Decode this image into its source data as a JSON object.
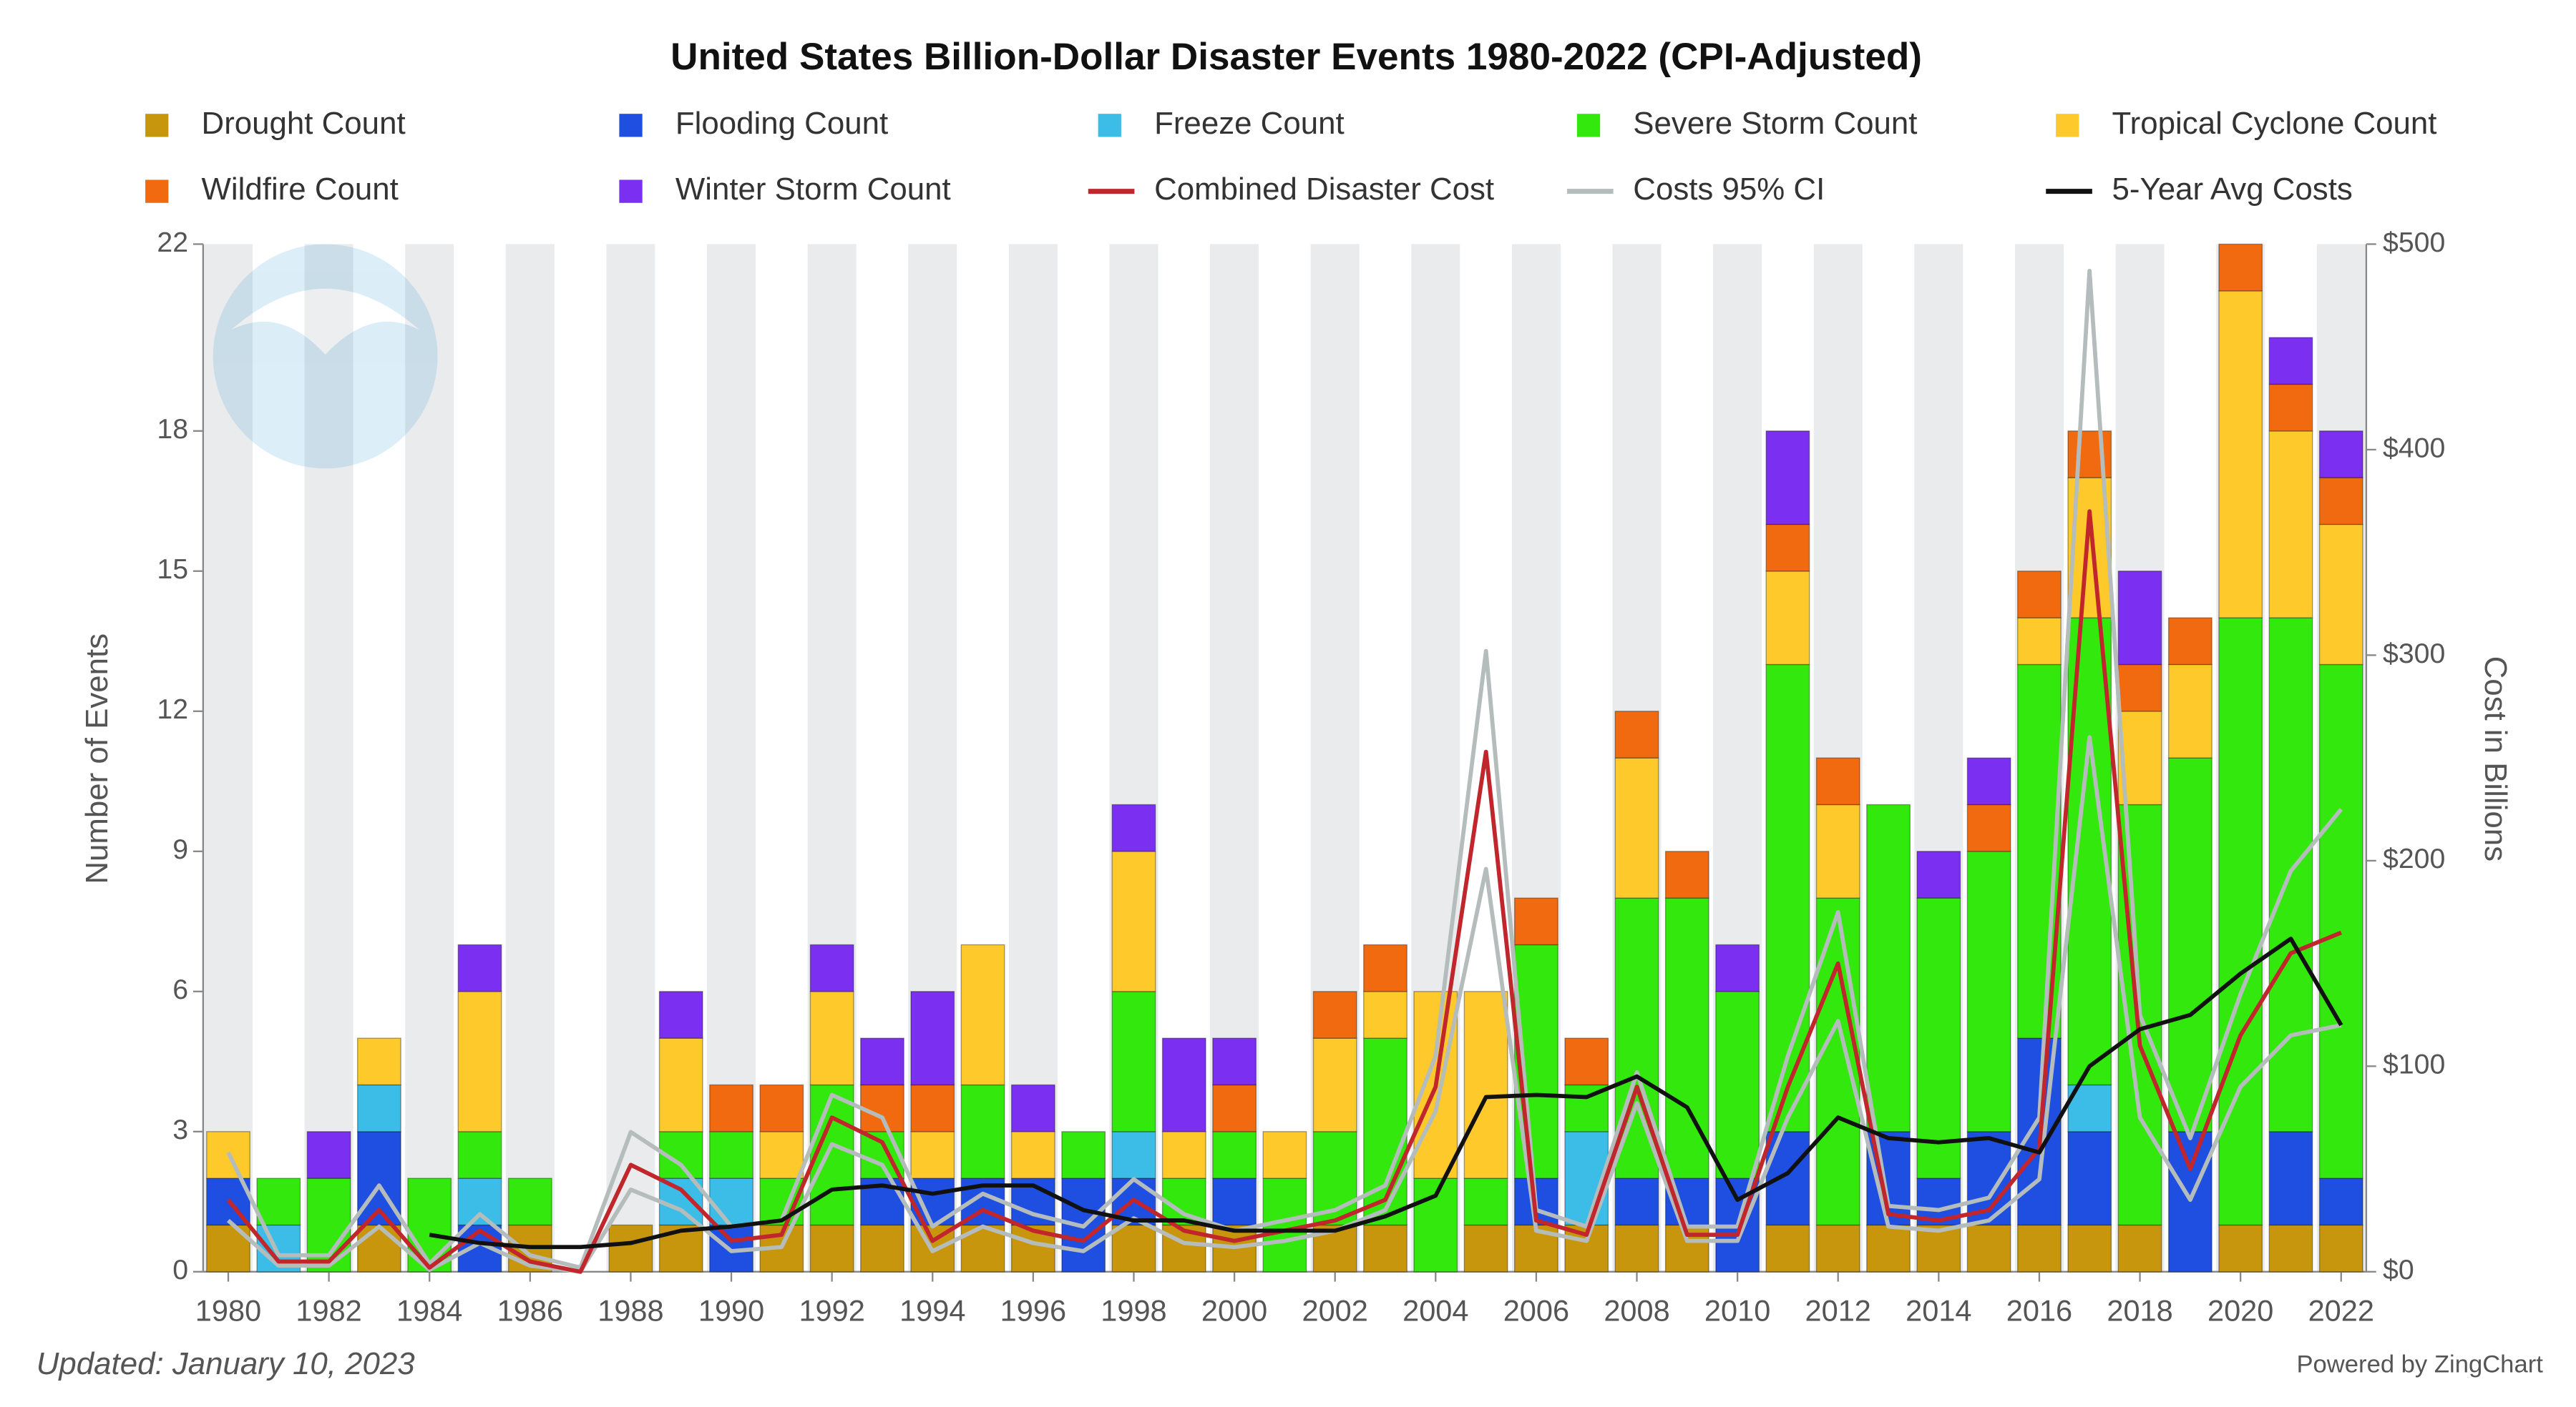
{
  "chart_data": {
    "type": "bar",
    "stacked": true,
    "title": "United States Billion-Dollar Disaster Events 1980-2022 (CPI-Adjusted)",
    "ylabel": "Number of Events",
    "y2label": "Cost in Billions",
    "footnote": "Updated: January 10, 2023",
    "credit": "Powered by ZingChart",
    "x": [
      1980,
      1981,
      1982,
      1983,
      1984,
      1985,
      1986,
      1987,
      1988,
      1989,
      1990,
      1991,
      1992,
      1993,
      1994,
      1995,
      1996,
      1997,
      1998,
      1999,
      2000,
      2001,
      2002,
      2003,
      2004,
      2005,
      2006,
      2007,
      2008,
      2009,
      2010,
      2011,
      2012,
      2013,
      2014,
      2015,
      2016,
      2017,
      2018,
      2019,
      2020,
      2021,
      2022
    ],
    "xlim": [
      1979.5,
      2022.5
    ],
    "xticks": [
      1980,
      1982,
      1984,
      1986,
      1988,
      1990,
      1992,
      1994,
      1996,
      1998,
      2000,
      2002,
      2004,
      2006,
      2008,
      2010,
      2012,
      2014,
      2016,
      2018,
      2020,
      2022
    ],
    "ylim": [
      0,
      22
    ],
    "yticks": [
      0,
      3,
      6,
      9,
      12,
      15,
      18,
      22
    ],
    "y2lim": [
      0,
      500
    ],
    "y2ticks": [
      {
        "value": 0,
        "label": "$0"
      },
      {
        "value": 100,
        "label": "$100"
      },
      {
        "value": 200,
        "label": "$200"
      },
      {
        "value": 300,
        "label": "$300"
      },
      {
        "value": 400,
        "label": "$400"
      },
      {
        "value": 500,
        "label": "$500"
      }
    ],
    "grid": true,
    "series": [
      {
        "name": "Drought Count",
        "color": "#c8960c",
        "values": [
          1,
          0,
          0,
          1,
          0,
          0,
          1,
          0,
          1,
          1,
          0,
          1,
          1,
          1,
          1,
          1,
          1,
          0,
          1,
          1,
          1,
          0,
          1,
          1,
          0,
          1,
          1,
          1,
          1,
          1,
          0,
          1,
          1,
          1,
          1,
          1,
          1,
          1,
          1,
          0,
          1,
          1,
          1
        ]
      },
      {
        "name": "Flooding Count",
        "color": "#1f4fe0",
        "values": [
          1,
          0,
          0,
          2,
          0,
          1,
          0,
          0,
          0,
          0,
          1,
          0,
          0,
          1,
          1,
          1,
          1,
          2,
          1,
          0,
          1,
          0,
          0,
          0,
          0,
          0,
          1,
          0,
          1,
          1,
          2,
          2,
          0,
          2,
          1,
          2,
          4,
          2,
          0,
          3,
          0,
          2,
          1
        ]
      },
      {
        "name": "Freeze Count",
        "color": "#3bbde8",
        "values": [
          0,
          1,
          0,
          1,
          0,
          1,
          0,
          0,
          0,
          1,
          1,
          0,
          0,
          0,
          0,
          0,
          0,
          0,
          1,
          0,
          0,
          0,
          0,
          0,
          0,
          0,
          0,
          2,
          0,
          0,
          0,
          0,
          0,
          0,
          0,
          0,
          0,
          1,
          0,
          0,
          0,
          0,
          0
        ]
      },
      {
        "name": "Severe Storm Count",
        "color": "#33e80c",
        "values": [
          0,
          1,
          2,
          0,
          2,
          1,
          1,
          0,
          0,
          1,
          1,
          1,
          3,
          1,
          0,
          2,
          0,
          1,
          3,
          1,
          1,
          2,
          2,
          4,
          2,
          1,
          5,
          1,
          6,
          6,
          4,
          10,
          7,
          7,
          6,
          6,
          8,
          10,
          9,
          8,
          13,
          11,
          11
        ]
      },
      {
        "name": "Tropical Cyclone Count",
        "color": "#fdc92b",
        "values": [
          1,
          0,
          0,
          1,
          0,
          3,
          0,
          0,
          0,
          2,
          0,
          1,
          2,
          0,
          1,
          3,
          1,
          0,
          3,
          1,
          0,
          1,
          2,
          1,
          4,
          4,
          0,
          0,
          3,
          0,
          0,
          2,
          2,
          0,
          0,
          0,
          1,
          3,
          2,
          2,
          7,
          4,
          3
        ]
      },
      {
        "name": "Wildfire Count",
        "color": "#f26a0f",
        "values": [
          0,
          0,
          0,
          0,
          0,
          0,
          0,
          0,
          0,
          0,
          1,
          1,
          0,
          1,
          1,
          0,
          0,
          0,
          0,
          0,
          1,
          0,
          1,
          1,
          0,
          0,
          1,
          1,
          1,
          1,
          0,
          1,
          1,
          0,
          0,
          1,
          1,
          1,
          1,
          1,
          1,
          1,
          1
        ]
      },
      {
        "name": "Winter Storm Count",
        "color": "#7b2ff0",
        "values": [
          0,
          0,
          1,
          0,
          0,
          1,
          0,
          0,
          0,
          1,
          0,
          0,
          1,
          1,
          2,
          0,
          1,
          0,
          1,
          2,
          1,
          0,
          0,
          0,
          0,
          0,
          0,
          0,
          0,
          0,
          1,
          2,
          0,
          0,
          1,
          1,
          0,
          0,
          2,
          0,
          0,
          1,
          1
        ]
      },
      {
        "name": "Combined Disaster Cost",
        "type": "line",
        "axis": "y2",
        "color": "#c0262c",
        "values": [
          35,
          5,
          5,
          30,
          2,
          20,
          5,
          0,
          52,
          40,
          15,
          18,
          75,
          63,
          15,
          30,
          20,
          15,
          35,
          20,
          15,
          20,
          25,
          35,
          90,
          253,
          25,
          18,
          90,
          18,
          18,
          90,
          150,
          28,
          25,
          30,
          60,
          370,
          110,
          50,
          115,
          155,
          165
        ]
      },
      {
        "name": "Costs 95% CI",
        "type": "band",
        "axis": "y2",
        "color": "#b5bcbc",
        "high": [
          58,
          8,
          8,
          42,
          4,
          28,
          8,
          2,
          68,
          52,
          22,
          25,
          86,
          75,
          22,
          38,
          28,
          22,
          45,
          28,
          20,
          25,
          30,
          42,
          105,
          302,
          30,
          22,
          97,
          22,
          22,
          105,
          175,
          32,
          30,
          36,
          75,
          487,
          125,
          65,
          135,
          195,
          225
        ],
        "low": [
          25,
          3,
          3,
          22,
          1,
          14,
          3,
          0,
          40,
          30,
          10,
          12,
          62,
          52,
          10,
          22,
          14,
          10,
          26,
          14,
          12,
          15,
          20,
          30,
          78,
          196,
          20,
          15,
          82,
          15,
          15,
          75,
          122,
          22,
          20,
          25,
          45,
          260,
          75,
          35,
          90,
          115,
          120
        ]
      },
      {
        "name": "5-Year Avg Costs",
        "type": "line",
        "axis": "y2",
        "color": "#111111",
        "values": [
          null,
          null,
          null,
          null,
          18,
          14,
          12,
          12,
          14,
          20,
          22,
          25,
          40,
          42,
          38,
          42,
          42,
          30,
          25,
          25,
          20,
          20,
          20,
          27,
          37,
          85,
          86,
          85,
          95,
          80,
          35,
          48,
          75,
          65,
          63,
          65,
          58,
          100,
          118,
          125,
          145,
          162,
          120
        ]
      }
    ]
  }
}
